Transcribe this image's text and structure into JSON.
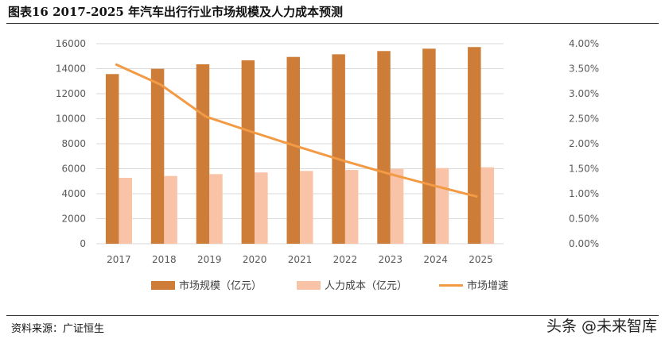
{
  "title": "图表16 2017-2025 年汽车出行行业市场规模及人力成本预测",
  "source": "资料来源：广证恒生",
  "watermark": "头条 @未来智库",
  "colors": {
    "market": "#CD7D38",
    "labor": "#F8C3A6",
    "growth": "#F39A45"
  },
  "chart_data": {
    "type": "bar",
    "title": "2017-2025 年汽车出行行业市场规模及人力成本预测",
    "categories": [
      "2017",
      "2018",
      "2019",
      "2020",
      "2021",
      "2022",
      "2023",
      "2024",
      "2025"
    ],
    "series": [
      {
        "name": "市场规模（亿元）",
        "type": "bar",
        "axis": "left",
        "values": [
          13570,
          13990,
          14350,
          14670,
          14940,
          15150,
          15410,
          15600,
          15730
        ]
      },
      {
        "name": "人力成本（亿元）",
        "type": "bar",
        "axis": "left",
        "values": [
          5270,
          5420,
          5570,
          5700,
          5820,
          5900,
          5990,
          6050,
          6110
        ]
      },
      {
        "name": "市场增速",
        "type": "line",
        "axis": "right",
        "values": [
          3.59,
          3.18,
          2.54,
          2.24,
          1.95,
          1.67,
          1.41,
          1.17,
          0.94
        ]
      }
    ],
    "ylim": [
      0,
      16000
    ],
    "y_ticks": [
      "0",
      "2000",
      "4000",
      "6000",
      "8000",
      "10000",
      "12000",
      "14000",
      "16000"
    ],
    "y2lim": [
      0,
      4
    ],
    "y2_ticks": [
      "0.00%",
      "0.50%",
      "1.00%",
      "1.50%",
      "2.00%",
      "2.50%",
      "3.00%",
      "3.50%",
      "4.00%"
    ],
    "grid": true,
    "legend": "bottom"
  }
}
